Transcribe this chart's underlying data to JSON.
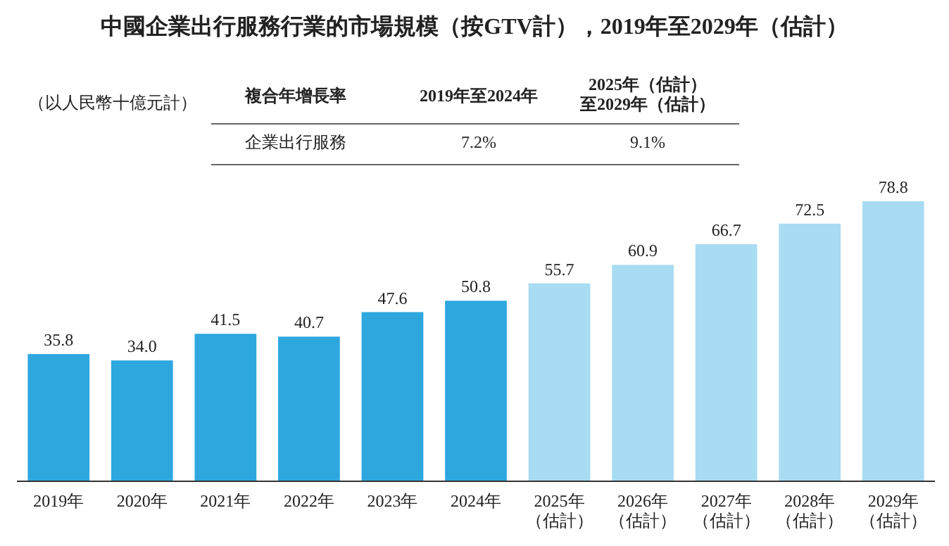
{
  "chart_data": {
    "type": "bar",
    "title": "中國企業出行服務行業的市場規模（按GTV計），2019年至2029年（估計）",
    "categories": [
      "2019年",
      "2020年",
      "2021年",
      "2022年",
      "2023年",
      "2024年",
      "2025年（估計）",
      "2026年（估計）",
      "2027年（估計）",
      "2028年（估計）",
      "2029年（估計）"
    ],
    "values": [
      35.8,
      34.0,
      41.5,
      40.7,
      47.6,
      50.8,
      55.7,
      60.9,
      66.7,
      72.5,
      78.8
    ],
    "colors": [
      "#2ea7df",
      "#2ea7df",
      "#2ea7df",
      "#2ea7df",
      "#2ea7df",
      "#2ea7df",
      "#a8dcf2",
      "#a8dcf2",
      "#a8dcf2",
      "#a8dcf2",
      "#a8dcf2"
    ],
    "value_labels": [
      "35.8",
      "34.0",
      "41.5",
      "40.7",
      "47.6",
      "50.8",
      "55.7",
      "60.9",
      "66.7",
      "72.5",
      "78.8"
    ],
    "annotations": [
      "（以人民幣十億元計）",
      "複合年增長率",
      "2019年至2024年",
      "2025年（估計）至2029年（估計）",
      "企業出行服務",
      "7.2%",
      "9.1%"
    ]
  }
}
